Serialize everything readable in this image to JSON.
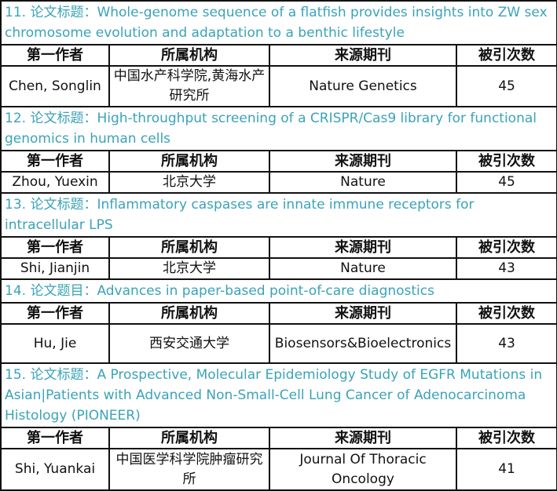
{
  "accent_color": "#3aa3b8",
  "headers": [
    "第一作者",
    "所属机构",
    "来源期刊",
    "被引次数"
  ],
  "papers": [
    {
      "title": "11. 论文标题：Whole-genome sequence of a flatfish provides insights into ZW sex chromosome evolution and adaptation to a benthic lifestyle",
      "author": "Chen, Songlin",
      "institution": "中国水产科学院,黄海水产研究所",
      "journal": "Nature Genetics",
      "citations": "45"
    },
    {
      "title": "12. 论文标题：High-throughput screening of a CRISPR/Cas9 library for functional genomics in human cells",
      "author": "Zhou, Yuexin",
      "institution": "北京大学",
      "journal": "Nature",
      "citations": "45"
    },
    {
      "title": "13. 论文标题：Inflammatory caspases are innate immune receptors for intracellular LPS",
      "author": "Shi, Jianjin",
      "institution": "北京大学",
      "journal": "Nature",
      "citations": "43"
    },
    {
      "title": "14. 论文题目：Advances in paper-based point-of-care diagnostics",
      "author": "Hu, Jie",
      "institution": "西安交通大学",
      "journal": "Biosensors&Bioelectronics",
      "citations": "43"
    },
    {
      "title": "15. 论文标题：A Prospective, Molecular Epidemiology Study of EGFR Mutations in Asian|Patients with Advanced Non-Small-Cell Lung Cancer of Adenocarcinoma Histology (PIONEER)",
      "author": "Shi, Yuankai",
      "institution": "中国医学科学院肿瘤研究所",
      "journal": "Journal Of  Thoracic Oncology",
      "citations": "41"
    }
  ]
}
